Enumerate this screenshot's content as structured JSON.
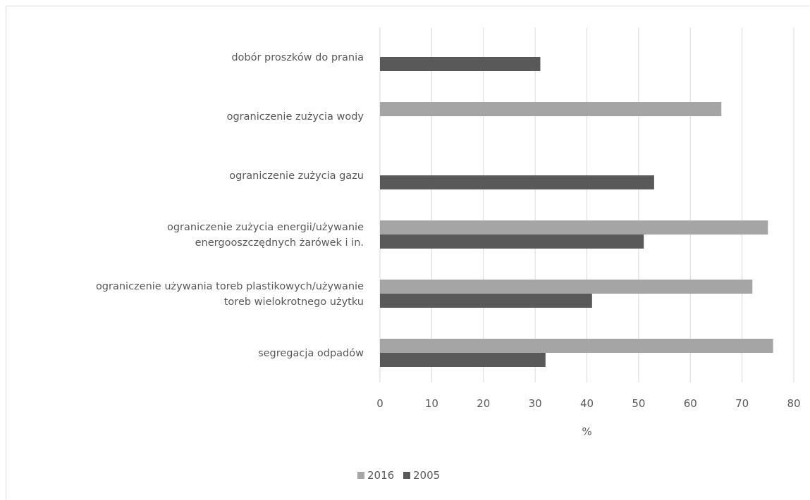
{
  "chart_data": {
    "type": "bar",
    "orientation": "horizontal",
    "categories": [
      [
        "dobór proszków do prania"
      ],
      [
        "ograniczenie zużycia wody"
      ],
      [
        "ograniczenie zużycia gazu"
      ],
      [
        "ograniczenie zużycia energii/używanie",
        "energooszczędnych żarówek i in."
      ],
      [
        "ograniczenie używania toreb plastikowych/używanie",
        "toreb wielokrotnego użytku"
      ],
      [
        "segregacja odpadów"
      ]
    ],
    "series": [
      {
        "name": "2016",
        "color": "#a5a5a5",
        "values": [
          null,
          66,
          null,
          75,
          72,
          76
        ]
      },
      {
        "name": "2005",
        "color": "#595959",
        "values": [
          31,
          null,
          53,
          51,
          41,
          32
        ]
      }
    ],
    "xlabel": "%",
    "xlim": [
      0,
      80
    ],
    "xticks": [
      "0",
      "10",
      "20",
      "30",
      "40",
      "50",
      "60",
      "70",
      "80"
    ],
    "grid": "vertical",
    "legend_position": "bottom",
    "gridline_color": "#d9d9d9"
  }
}
